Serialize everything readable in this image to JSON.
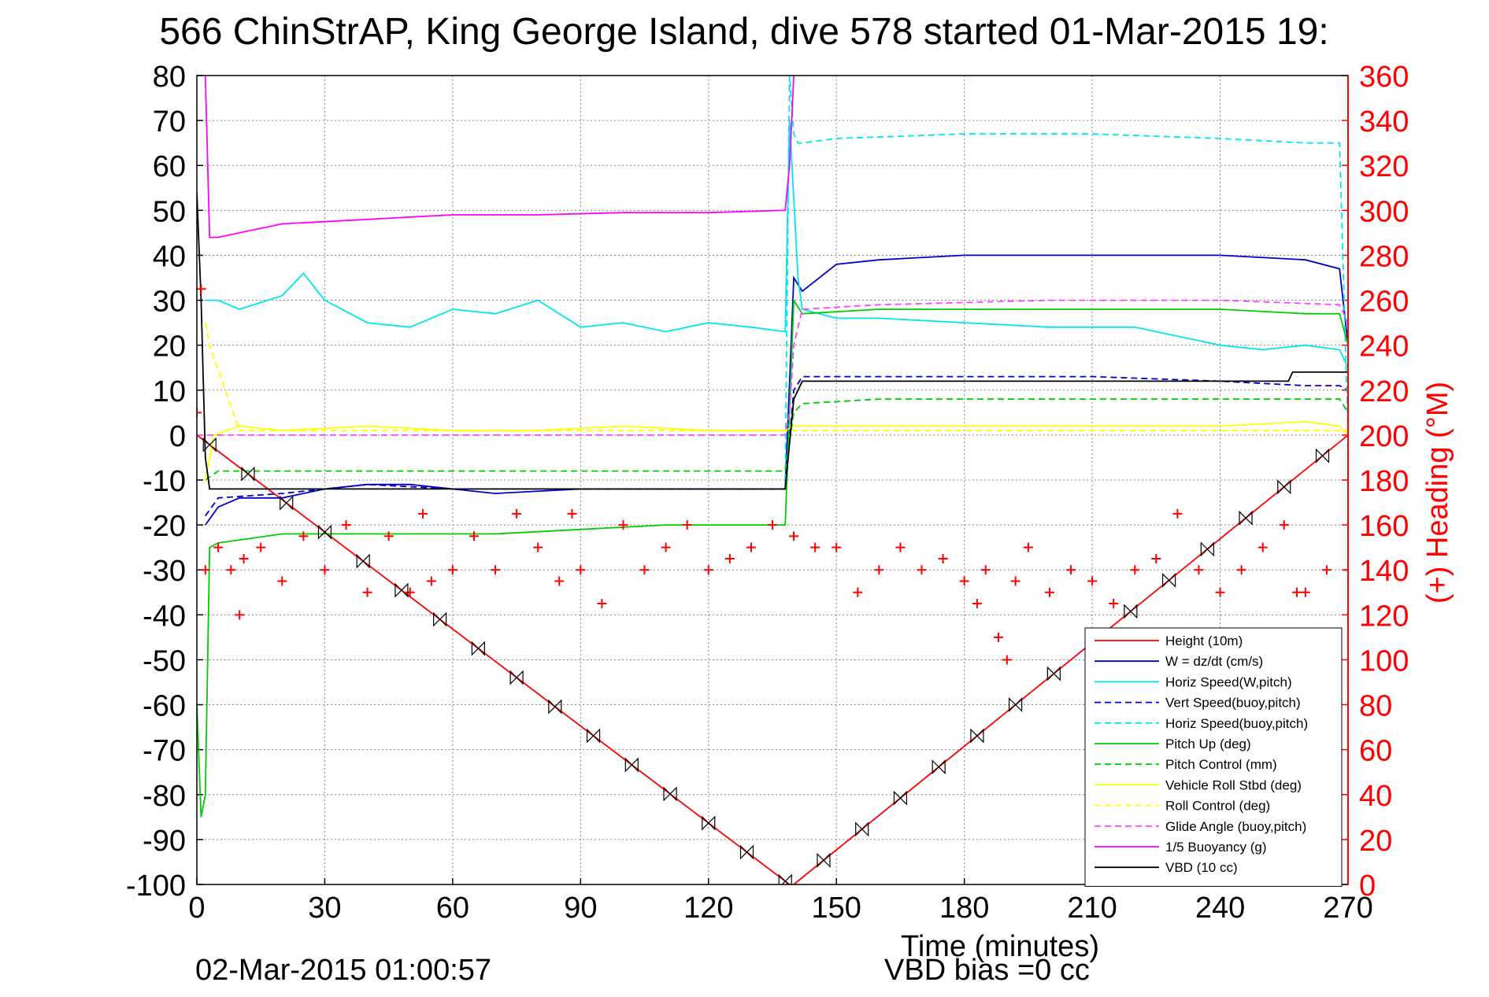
{
  "chart_data": {
    "type": "line",
    "title": "566 ChinStrAP, King George Island, dive 578 started 01-Mar-2015 19:",
    "xlabel": "Time (minutes)",
    "ylabel": "",
    "ylabel_right": "(+) Heading (°M)",
    "xlim": [
      0,
      270
    ],
    "ylim": [
      -100,
      80
    ],
    "ylim_right": [
      0,
      360
    ],
    "x_ticks": [
      "0",
      "30",
      "60",
      "90",
      "120",
      "150",
      "180",
      "210",
      "240",
      "270"
    ],
    "y_ticks": [
      "-100",
      "-90",
      "-80",
      "-70",
      "-60",
      "-50",
      "-40",
      "-30",
      "-20",
      "-10",
      "0",
      "10",
      "20",
      "30",
      "40",
      "50",
      "60",
      "70",
      "80"
    ],
    "y_right_ticks": [
      "0",
      "20",
      "40",
      "60",
      "80",
      "100",
      "120",
      "140",
      "160",
      "180",
      "200",
      "220",
      "240",
      "260",
      "280",
      "300",
      "320",
      "340",
      "360"
    ],
    "grid": true,
    "legend_position": "bottom-right",
    "footer_left": "02-Mar-2015 01:00:57",
    "footer_right": "VBD bias =0 cc",
    "colors": {
      "left_axis": "#000000",
      "right_axis": "#ff0000",
      "grid": "#808080"
    },
    "series": [
      {
        "name": "Height (10m)",
        "color": "#ff0000",
        "style": "solid",
        "x": [
          0,
          139,
          140,
          270
        ],
        "y": [
          0,
          -100,
          -100,
          0
        ]
      },
      {
        "name": "W = dz/dt (cm/s)",
        "color": "#0000cc",
        "style": "solid",
        "x": [
          2,
          5,
          10,
          20,
          30,
          40,
          50,
          60,
          70,
          90,
          110,
          130,
          138,
          140,
          142,
          150,
          160,
          180,
          200,
          220,
          240,
          260,
          268,
          270
        ],
        "y": [
          -20,
          -16,
          -14,
          -14,
          -12,
          -11,
          -11,
          -12,
          -13,
          -12,
          -12,
          -12,
          -12,
          35,
          32,
          38,
          39,
          40,
          40,
          40,
          40,
          39,
          37,
          20
        ]
      },
      {
        "name": "Horiz Speed(W,pitch)",
        "color": "#00e5ee",
        "style": "solid",
        "x": [
          2,
          5,
          10,
          20,
          25,
          30,
          40,
          50,
          60,
          70,
          80,
          90,
          100,
          110,
          120,
          130,
          138,
          139,
          141,
          142,
          150,
          160,
          180,
          200,
          220,
          240,
          250,
          260,
          268,
          270
        ],
        "y": [
          30,
          30,
          28,
          31,
          36,
          30,
          25,
          24,
          28,
          27,
          30,
          24,
          25,
          23,
          25,
          24,
          23,
          70,
          35,
          28,
          26,
          26,
          25,
          24,
          24,
          20,
          19,
          20,
          19,
          15
        ]
      },
      {
        "name": "Vert Speed(buoy,pitch)",
        "color": "#0000cc",
        "style": "dashed",
        "x": [
          2,
          5,
          20,
          40,
          60,
          80,
          100,
          120,
          138,
          140,
          142,
          150,
          180,
          210,
          240,
          260,
          268,
          270
        ],
        "y": [
          -18,
          -14,
          -13,
          -11,
          -12,
          -12,
          -12,
          -12,
          -12,
          10,
          13,
          13,
          13,
          13,
          12,
          11,
          11,
          10
        ]
      },
      {
        "name": "Horiz Speed(buoy,pitch)",
        "color": "#00e5ee",
        "style": "dashed",
        "x": [
          138,
          139,
          140,
          141,
          142,
          150,
          180,
          210,
          240,
          260,
          268,
          270
        ],
        "y": [
          -10,
          80,
          67,
          65,
          65,
          66,
          67,
          67,
          66,
          65,
          65,
          0
        ]
      },
      {
        "name": "Pitch Up (deg)",
        "color": "#00cc00",
        "style": "solid",
        "x": [
          0,
          1,
          2,
          3,
          5,
          20,
          50,
          70,
          90,
          110,
          130,
          138,
          140,
          142,
          160,
          180,
          210,
          240,
          260,
          268,
          270
        ],
        "y": [
          -60,
          -85,
          -80,
          -25,
          -24,
          -22,
          -22,
          -22,
          -21,
          -20,
          -20,
          -20,
          30,
          27,
          28,
          28,
          28,
          28,
          27,
          27,
          20
        ]
      },
      {
        "name": "Pitch Control (mm)",
        "color": "#00cc00",
        "style": "dashed",
        "x": [
          2,
          5,
          20,
          50,
          100,
          138,
          140,
          142,
          160,
          200,
          240,
          268,
          270
        ],
        "y": [
          -10,
          -8,
          -8,
          -8,
          -8,
          -8,
          5,
          7,
          8,
          8,
          8,
          8,
          5
        ]
      },
      {
        "name": "Vehicle Roll Stbd (deg)",
        "color": "#ffff00",
        "style": "solid",
        "x": [
          2,
          4,
          10,
          20,
          40,
          60,
          80,
          100,
          120,
          138,
          140,
          150,
          180,
          210,
          240,
          260,
          268,
          270
        ],
        "y": [
          -10,
          0,
          2,
          1,
          2,
          1,
          1,
          2,
          1,
          1,
          2,
          2,
          2,
          2,
          2,
          3,
          2,
          0
        ]
      },
      {
        "name": "Roll Control (deg)",
        "color": "#ffff00",
        "style": "dashed",
        "x": [
          2,
          3,
          10,
          50,
          100,
          138,
          142,
          200,
          268,
          270
        ],
        "y": [
          25,
          20,
          1,
          1,
          1,
          1,
          1,
          1,
          1,
          1
        ]
      },
      {
        "name": "Glide Angle (buoy,pitch)",
        "color": "#ff44ff",
        "style": "dashed",
        "x": [
          0,
          138,
          139,
          140,
          142,
          160,
          200,
          240,
          268,
          270
        ],
        "y": [
          0,
          0,
          5,
          20,
          28,
          29,
          30,
          30,
          29,
          25
        ]
      },
      {
        "name": "1/5 Buoyancy (g)",
        "color": "#ff00ff",
        "style": "solid",
        "x": [
          2,
          3,
          5,
          10,
          20,
          40,
          60,
          80,
          100,
          120,
          138,
          139,
          140
        ],
        "y": [
          80,
          44,
          44,
          45,
          47,
          48,
          49,
          49,
          49.5,
          49.5,
          50,
          60,
          80
        ]
      },
      {
        "name": "VBD (10 cc)",
        "color": "#000000",
        "style": "solid",
        "x": [
          0,
          1,
          2,
          3,
          138,
          140,
          142,
          180,
          220,
          256,
          257,
          270
        ],
        "y": [
          54,
          30,
          -5,
          -12,
          -12,
          8,
          12,
          12,
          12,
          12,
          14,
          14
        ]
      },
      {
        "name": "Heading",
        "color": "#ff0000",
        "style": "markers",
        "axis": "right",
        "x": [
          0,
          1,
          2,
          5,
          8,
          10,
          11,
          15,
          20,
          25,
          30,
          35,
          40,
          45,
          50,
          53,
          55,
          60,
          65,
          70,
          75,
          80,
          85,
          88,
          90,
          95,
          100,
          105,
          110,
          115,
          120,
          125,
          130,
          135,
          140,
          145,
          150,
          155,
          160,
          165,
          170,
          175,
          180,
          183,
          185,
          188,
          190,
          192,
          195,
          200,
          205,
          210,
          215,
          220,
          225,
          230,
          235,
          240,
          245,
          250,
          255,
          258,
          260,
          265,
          270
        ],
        "y": [
          210,
          265,
          140,
          150,
          140,
          120,
          145,
          150,
          135,
          155,
          140,
          160,
          130,
          155,
          130,
          165,
          135,
          140,
          155,
          140,
          165,
          150,
          135,
          165,
          140,
          125,
          160,
          140,
          150,
          160,
          140,
          145,
          150,
          160,
          155,
          150,
          150,
          130,
          140,
          150,
          140,
          145,
          135,
          125,
          140,
          110,
          100,
          135,
          150,
          130,
          140,
          135,
          125,
          140,
          145,
          165,
          140,
          130,
          140,
          150,
          160,
          130,
          130,
          140,
          140
        ]
      }
    ]
  }
}
